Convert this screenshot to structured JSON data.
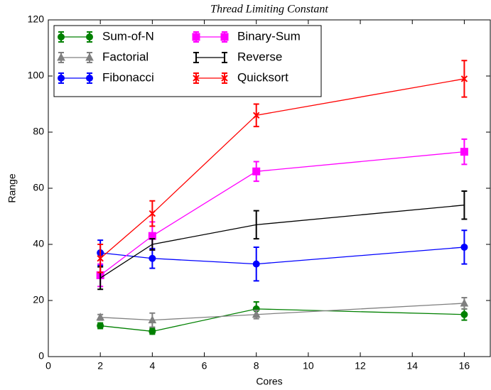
{
  "chart_data": {
    "type": "line",
    "title": "Thread Limiting Constant",
    "x_label": "Cores",
    "y_label": "Range",
    "x": [
      2,
      4,
      8,
      16
    ],
    "xlim": [
      0,
      17
    ],
    "xticks": [
      0,
      2,
      4,
      6,
      8,
      10,
      12,
      14,
      16
    ],
    "ylim": [
      0,
      120
    ],
    "yticks": [
      0,
      20,
      40,
      60,
      80,
      100,
      120
    ],
    "legend": "upper left",
    "series": [
      {
        "name": "Sum-of-N",
        "color": "#008000",
        "marker": "circle",
        "values": [
          11,
          9,
          17,
          15
        ],
        "errors": [
          1,
          1,
          2.5,
          2
        ]
      },
      {
        "name": "Factorial",
        "color": "#808080",
        "marker": "triangle",
        "values": [
          14,
          13,
          15,
          19
        ],
        "errors": [
          1,
          2.5,
          1.5,
          2
        ]
      },
      {
        "name": "Fibonacci",
        "color": "#0000ff",
        "marker": "circle",
        "values": [
          37,
          35,
          33,
          39
        ],
        "errors": [
          4.5,
          3.5,
          6,
          6
        ]
      },
      {
        "name": "Binary-Sum",
        "color": "#ff00ff",
        "marker": "square",
        "values": [
          29,
          43,
          66,
          73
        ],
        "errors": [
          4,
          5,
          3.5,
          4.5
        ]
      },
      {
        "name": "Reverse",
        "color": "#000000",
        "marker": "none",
        "values": [
          28,
          40,
          47,
          54
        ],
        "errors": [
          4,
          2,
          5,
          5
        ]
      },
      {
        "name": "Quicksort",
        "color": "#ff0000",
        "marker": "x",
        "values": [
          35,
          51,
          86,
          99
        ],
        "errors": [
          5,
          4.5,
          4,
          6.5
        ]
      }
    ]
  }
}
